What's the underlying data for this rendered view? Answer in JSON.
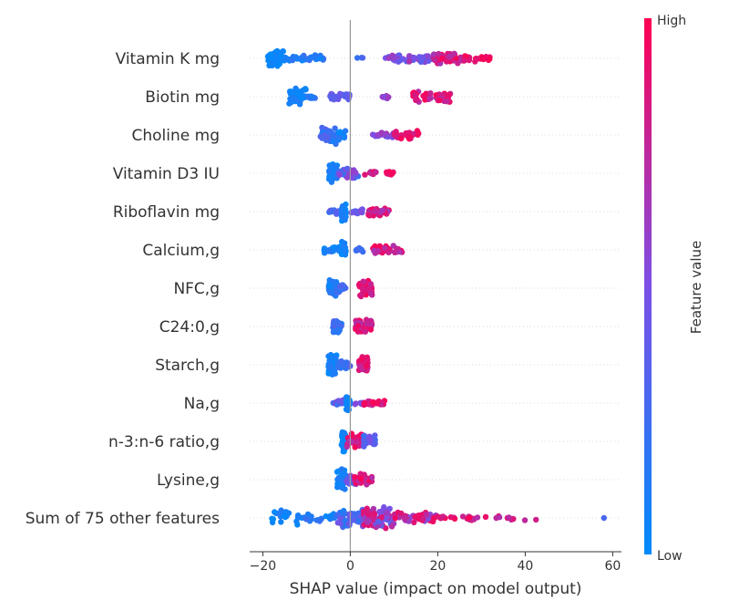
{
  "chart_data": {
    "type": "scatter",
    "subtype": "shap-beeswarm",
    "xlabel": "SHAP value (impact on model output)",
    "xlim": [
      -23,
      62
    ],
    "xticks": [
      -20,
      0,
      20,
      40,
      60
    ],
    "xtick_labels": [
      "−20",
      "0",
      "20",
      "40",
      "60"
    ],
    "zero_line": 0,
    "grid": "dotted horizontal row guides",
    "colorbar": {
      "title": "Feature value",
      "high_label": "High",
      "low_label": "Low",
      "low_color": "#008bfb",
      "high_color": "#ff0052"
    },
    "features": [
      {
        "name": "Vitamin K mg",
        "clusters": [
          {
            "min": -19,
            "max": -15,
            "count": 70,
            "spread": 10,
            "vlo": 0.0,
            "vhi": 0.08
          },
          {
            "min": -15,
            "max": -6,
            "count": 30,
            "spread": 4,
            "vlo": 0.05,
            "vhi": 0.25
          },
          {
            "min": 1,
            "max": 3,
            "count": 3,
            "spread": 2,
            "vlo": 0.2,
            "vhi": 0.35
          },
          {
            "min": 8,
            "max": 19,
            "count": 45,
            "spread": 5,
            "vlo": 0.35,
            "vhi": 0.7
          },
          {
            "min": 19,
            "max": 26,
            "count": 55,
            "spread": 7,
            "vlo": 0.65,
            "vhi": 1.0
          },
          {
            "min": 26,
            "max": 32,
            "count": 25,
            "spread": 4,
            "vlo": 0.85,
            "vhi": 1.0
          }
        ]
      },
      {
        "name": "Biotin mg",
        "clusters": [
          {
            "min": -14,
            "max": -10,
            "count": 40,
            "spread": 10,
            "vlo": 0.0,
            "vhi": 0.15
          },
          {
            "min": -10,
            "max": -8,
            "count": 8,
            "spread": 3,
            "vlo": 0.1,
            "vhi": 0.25
          },
          {
            "min": -5,
            "max": 0,
            "count": 22,
            "spread": 4,
            "vlo": 0.3,
            "vhi": 0.5
          },
          {
            "min": 7,
            "max": 9,
            "count": 8,
            "spread": 3,
            "vlo": 0.5,
            "vhi": 0.65
          },
          {
            "min": 14,
            "max": 23,
            "count": 55,
            "spread": 7,
            "vlo": 0.7,
            "vhi": 1.0
          }
        ]
      },
      {
        "name": "Choline mg",
        "clusters": [
          {
            "min": -7,
            "max": -3,
            "count": 40,
            "spread": 11,
            "vlo": 0.1,
            "vhi": 0.4
          },
          {
            "min": -3,
            "max": -1,
            "count": 15,
            "spread": 6,
            "vlo": 0.0,
            "vhi": 0.2
          },
          {
            "min": 5,
            "max": 10,
            "count": 20,
            "spread": 3,
            "vlo": 0.4,
            "vhi": 0.7
          },
          {
            "min": 10,
            "max": 16,
            "count": 30,
            "spread": 5,
            "vlo": 0.75,
            "vhi": 1.0
          }
        ]
      },
      {
        "name": "Vitamin D3 IU",
        "clusters": [
          {
            "min": -5,
            "max": -3,
            "count": 45,
            "spread": 11,
            "vlo": 0.0,
            "vhi": 0.15
          },
          {
            "min": -3,
            "max": 2,
            "count": 35,
            "spread": 6,
            "vlo": 0.2,
            "vhi": 0.6
          },
          {
            "min": 3,
            "max": 6,
            "count": 8,
            "spread": 2,
            "vlo": 0.7,
            "vhi": 0.95
          },
          {
            "min": 8,
            "max": 10,
            "count": 10,
            "spread": 3,
            "vlo": 0.85,
            "vhi": 1.0
          }
        ]
      },
      {
        "name": "Riboflavin mg",
        "clusters": [
          {
            "min": -5,
            "max": -2,
            "count": 15,
            "spread": 4,
            "vlo": 0.2,
            "vhi": 0.4
          },
          {
            "min": -2,
            "max": -1,
            "count": 40,
            "spread": 11,
            "vlo": 0.0,
            "vhi": 0.15
          },
          {
            "min": 0,
            "max": 3,
            "count": 15,
            "spread": 3,
            "vlo": 0.3,
            "vhi": 0.55
          },
          {
            "min": 4,
            "max": 9,
            "count": 35,
            "spread": 5,
            "vlo": 0.6,
            "vhi": 1.0
          }
        ]
      },
      {
        "name": "Calcium,g",
        "clusters": [
          {
            "min": -6,
            "max": -2,
            "count": 25,
            "spread": 4,
            "vlo": 0.0,
            "vhi": 0.15
          },
          {
            "min": -2,
            "max": -1,
            "count": 30,
            "spread": 12,
            "vlo": 0.0,
            "vhi": 0.1
          },
          {
            "min": 1,
            "max": 3,
            "count": 8,
            "spread": 3,
            "vlo": 0.1,
            "vhi": 0.3
          },
          {
            "min": 5,
            "max": 12,
            "count": 40,
            "spread": 5,
            "vlo": 0.65,
            "vhi": 1.0
          }
        ]
      },
      {
        "name": "NFC,g",
        "clusters": [
          {
            "min": -5,
            "max": -3,
            "count": 40,
            "spread": 12,
            "vlo": 0.0,
            "vhi": 0.2
          },
          {
            "min": -3,
            "max": -1,
            "count": 20,
            "spread": 6,
            "vlo": 0.15,
            "vhi": 0.35
          },
          {
            "min": 2,
            "max": 5,
            "count": 55,
            "spread": 10,
            "vlo": 0.75,
            "vhi": 1.0
          }
        ]
      },
      {
        "name": "C24:0,g",
        "clusters": [
          {
            "min": -4,
            "max": -2,
            "count": 35,
            "spread": 8,
            "vlo": 0.1,
            "vhi": 0.4
          },
          {
            "min": 1,
            "max": 5,
            "count": 55,
            "spread": 8,
            "vlo": 0.7,
            "vhi": 1.0
          }
        ]
      },
      {
        "name": "Starch,g",
        "clusters": [
          {
            "min": -5,
            "max": -3,
            "count": 45,
            "spread": 13,
            "vlo": 0.0,
            "vhi": 0.15
          },
          {
            "min": -3,
            "max": 0,
            "count": 25,
            "spread": 6,
            "vlo": 0.1,
            "vhi": 0.35
          },
          {
            "min": 2,
            "max": 4,
            "count": 50,
            "spread": 10,
            "vlo": 0.75,
            "vhi": 1.0
          }
        ]
      },
      {
        "name": "Na,g",
        "clusters": [
          {
            "min": -4,
            "max": -1,
            "count": 20,
            "spread": 4,
            "vlo": 0.2,
            "vhi": 0.6
          },
          {
            "min": -1,
            "max": 0,
            "count": 30,
            "spread": 10,
            "vlo": 0.0,
            "vhi": 0.1
          },
          {
            "min": 1,
            "max": 3,
            "count": 6,
            "spread": 2,
            "vlo": 0.4,
            "vhi": 0.6
          },
          {
            "min": 3,
            "max": 8,
            "count": 30,
            "spread": 3,
            "vlo": 0.75,
            "vhi": 1.0
          }
        ]
      },
      {
        "name": "n-3:n-6 ratio,g",
        "clusters": [
          {
            "min": -2,
            "max": -1,
            "count": 35,
            "spread": 12,
            "vlo": 0.0,
            "vhi": 0.1
          },
          {
            "min": -1,
            "max": 3,
            "count": 40,
            "spread": 9,
            "vlo": 0.7,
            "vhi": 1.0
          },
          {
            "min": 3,
            "max": 6,
            "count": 25,
            "spread": 7,
            "vlo": 0.2,
            "vhi": 0.5
          }
        ]
      },
      {
        "name": "Lysine,g",
        "clusters": [
          {
            "min": -3,
            "max": -1,
            "count": 40,
            "spread": 12,
            "vlo": 0.0,
            "vhi": 0.15
          },
          {
            "min": -1,
            "max": 1,
            "count": 20,
            "spread": 8,
            "vlo": 0.3,
            "vhi": 0.6
          },
          {
            "min": 1,
            "max": 5,
            "count": 35,
            "spread": 7,
            "vlo": 0.7,
            "vhi": 1.0
          }
        ]
      },
      {
        "name": "Sum of 75 other features",
        "clusters": [
          {
            "min": -18,
            "max": -12,
            "count": 18,
            "spread": 9,
            "vlo": 0.0,
            "vhi": 0.15
          },
          {
            "min": -12,
            "max": -3,
            "count": 30,
            "spread": 6,
            "vlo": 0.0,
            "vhi": 0.25
          },
          {
            "min": -3,
            "max": 3,
            "count": 60,
            "spread": 12,
            "vlo": 0.1,
            "vhi": 0.5
          },
          {
            "min": 3,
            "max": 10,
            "count": 80,
            "spread": 14,
            "vlo": 0.35,
            "vhi": 0.9
          },
          {
            "min": 10,
            "max": 20,
            "count": 45,
            "spread": 8,
            "vlo": 0.5,
            "vhi": 1.0
          },
          {
            "min": 20,
            "max": 43,
            "count": 30,
            "spread": 3,
            "vlo": 0.7,
            "vhi": 1.0
          },
          {
            "min": 58,
            "max": 58,
            "count": 1,
            "spread": 1,
            "vlo": 0.3,
            "vhi": 0.3
          }
        ]
      }
    ]
  }
}
